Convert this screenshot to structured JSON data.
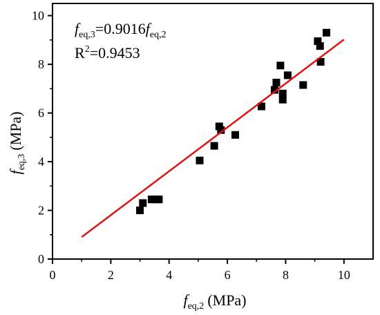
{
  "chart_data": {
    "type": "scatter",
    "xlabel": {
      "symbol": "f",
      "subscript": "eq,2",
      "unit": "(MPa)"
    },
    "ylabel": {
      "symbol": "f",
      "subscript": "eq,3",
      "unit": "(MPa)"
    },
    "xlim": [
      0,
      11
    ],
    "ylim": [
      0,
      10.5
    ],
    "xticks": [
      "0",
      "2",
      "4",
      "6",
      "8",
      "10"
    ],
    "yticks": [
      "0",
      "2",
      "4",
      "6",
      "8",
      "10"
    ],
    "xtick_values": [
      0,
      2,
      4,
      6,
      8,
      10
    ],
    "ytick_values": [
      0,
      2,
      4,
      6,
      8,
      10
    ],
    "grid": false,
    "colors": {
      "points": "#000000",
      "fit_line": "#e01010"
    },
    "points": [
      {
        "x": 3.0,
        "y": 2.0
      },
      {
        "x": 3.1,
        "y": 2.3
      },
      {
        "x": 3.4,
        "y": 2.45
      },
      {
        "x": 3.55,
        "y": 2.45
      },
      {
        "x": 3.65,
        "y": 2.45
      },
      {
        "x": 5.05,
        "y": 4.05
      },
      {
        "x": 5.55,
        "y": 4.65
      },
      {
        "x": 5.72,
        "y": 5.45
      },
      {
        "x": 5.78,
        "y": 5.3
      },
      {
        "x": 6.27,
        "y": 5.1
      },
      {
        "x": 7.17,
        "y": 6.27
      },
      {
        "x": 7.62,
        "y": 6.95
      },
      {
        "x": 7.68,
        "y": 7.25
      },
      {
        "x": 7.82,
        "y": 7.95
      },
      {
        "x": 7.9,
        "y": 6.8
      },
      {
        "x": 7.9,
        "y": 6.55
      },
      {
        "x": 8.07,
        "y": 7.55
      },
      {
        "x": 8.6,
        "y": 7.15
      },
      {
        "x": 9.1,
        "y": 8.95
      },
      {
        "x": 9.18,
        "y": 8.75
      },
      {
        "x": 9.2,
        "y": 8.1
      },
      {
        "x": 9.4,
        "y": 9.3
      }
    ],
    "fit": {
      "slope": 0.9016,
      "x_range": [
        1.0,
        10.0
      ]
    },
    "annotations": {
      "equation": {
        "lhs_symbol": "f",
        "lhs_sub": "eq,3",
        "rhs": "=0.9016",
        "rhs_symbol": "f",
        "rhs_sub": "eq,2"
      },
      "r2": {
        "base": "R",
        "sup": "2",
        "value": "=0.9453"
      }
    }
  }
}
